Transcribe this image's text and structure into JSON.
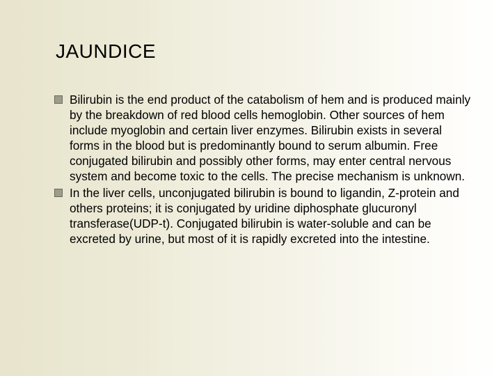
{
  "slide": {
    "title": "JAUNDICE",
    "bullets": [
      {
        "text": "Bilirubin is the end product of the catabolism of hem and is produced mainly by the breakdown of red blood cells hemoglobin. Other sources of hem include myoglobin and certain liver enzymes. Bilirubin exists in several forms in the blood but is predominantly bound to serum albumin. Free conjugated bilirubin and possibly other forms, may enter central nervous system and become toxic to the cells. The precise mechanism is unknown."
      },
      {
        "text": "In the liver cells, unconjugated bilirubin is bound to ligandin, Z-protein and others proteins; it is conjugated by uridine diphosphate glucuronyl transferase(UDP-t). Conjugated bilirubin is water-soluble and can be excreted by urine, but most of it is rapidly excreted into the intestine."
      }
    ]
  },
  "style": {
    "background_gradient_start": "#e8e4cd",
    "background_gradient_end": "#ffffff",
    "title_color": "#000000",
    "title_fontsize": 28,
    "body_color": "#000000",
    "body_fontsize": 17.2,
    "bullet_fill": "#9c9c8a",
    "bullet_border": "#6b6b5c",
    "bullet_size": 12,
    "font_family": "Verdana"
  }
}
